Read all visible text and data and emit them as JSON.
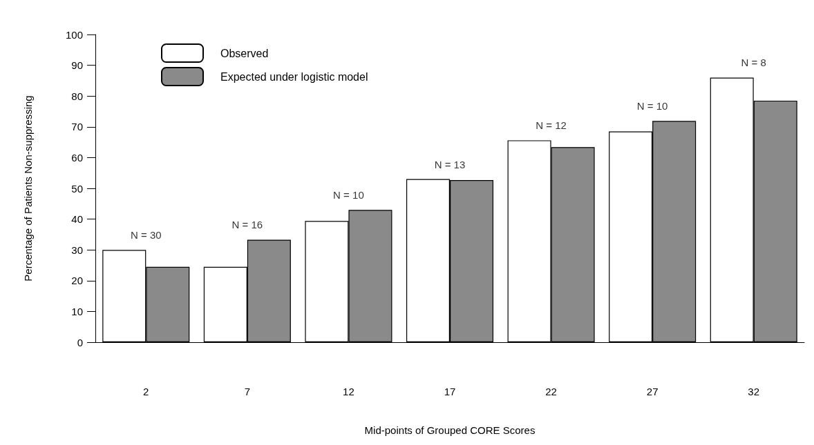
{
  "chart_data": {
    "type": "bar",
    "xlabel": "Mid-points of Grouped CORE Scores",
    "ylabel": "Percentage of Patients Non-suppressing",
    "categories": [
      "2",
      "7",
      "12",
      "17",
      "22",
      "27",
      "32"
    ],
    "series": [
      {
        "name": "Observed",
        "color": "#ffffff",
        "values": [
          30,
          24.5,
          39.4,
          53,
          65.6,
          68.5,
          86
        ]
      },
      {
        "name": "Expected under logistic model",
        "color": "#8a8a8a",
        "values": [
          24.5,
          33.3,
          43,
          52.7,
          63.4,
          71.9,
          78.5
        ]
      }
    ],
    "ylim": [
      0,
      100
    ],
    "yticks": [
      0,
      10,
      20,
      30,
      40,
      50,
      60,
      70,
      80,
      90,
      100
    ],
    "grid": false,
    "legend": "top left",
    "annotations": [
      {
        "text": "N = 30",
        "x": "2",
        "y": 30
      },
      {
        "text": "N = 16",
        "x": "7",
        "y": 33.3
      },
      {
        "text": "N = 10",
        "x": "12",
        "y": 43
      },
      {
        "text": "N = 13",
        "x": "17",
        "y": 53
      },
      {
        "text": "N = 12",
        "x": "22",
        "y": 65.6
      },
      {
        "text": "N = 10",
        "x": "27",
        "y": 71.9
      },
      {
        "text": "N = 8",
        "x": "32",
        "y": 86
      }
    ]
  }
}
